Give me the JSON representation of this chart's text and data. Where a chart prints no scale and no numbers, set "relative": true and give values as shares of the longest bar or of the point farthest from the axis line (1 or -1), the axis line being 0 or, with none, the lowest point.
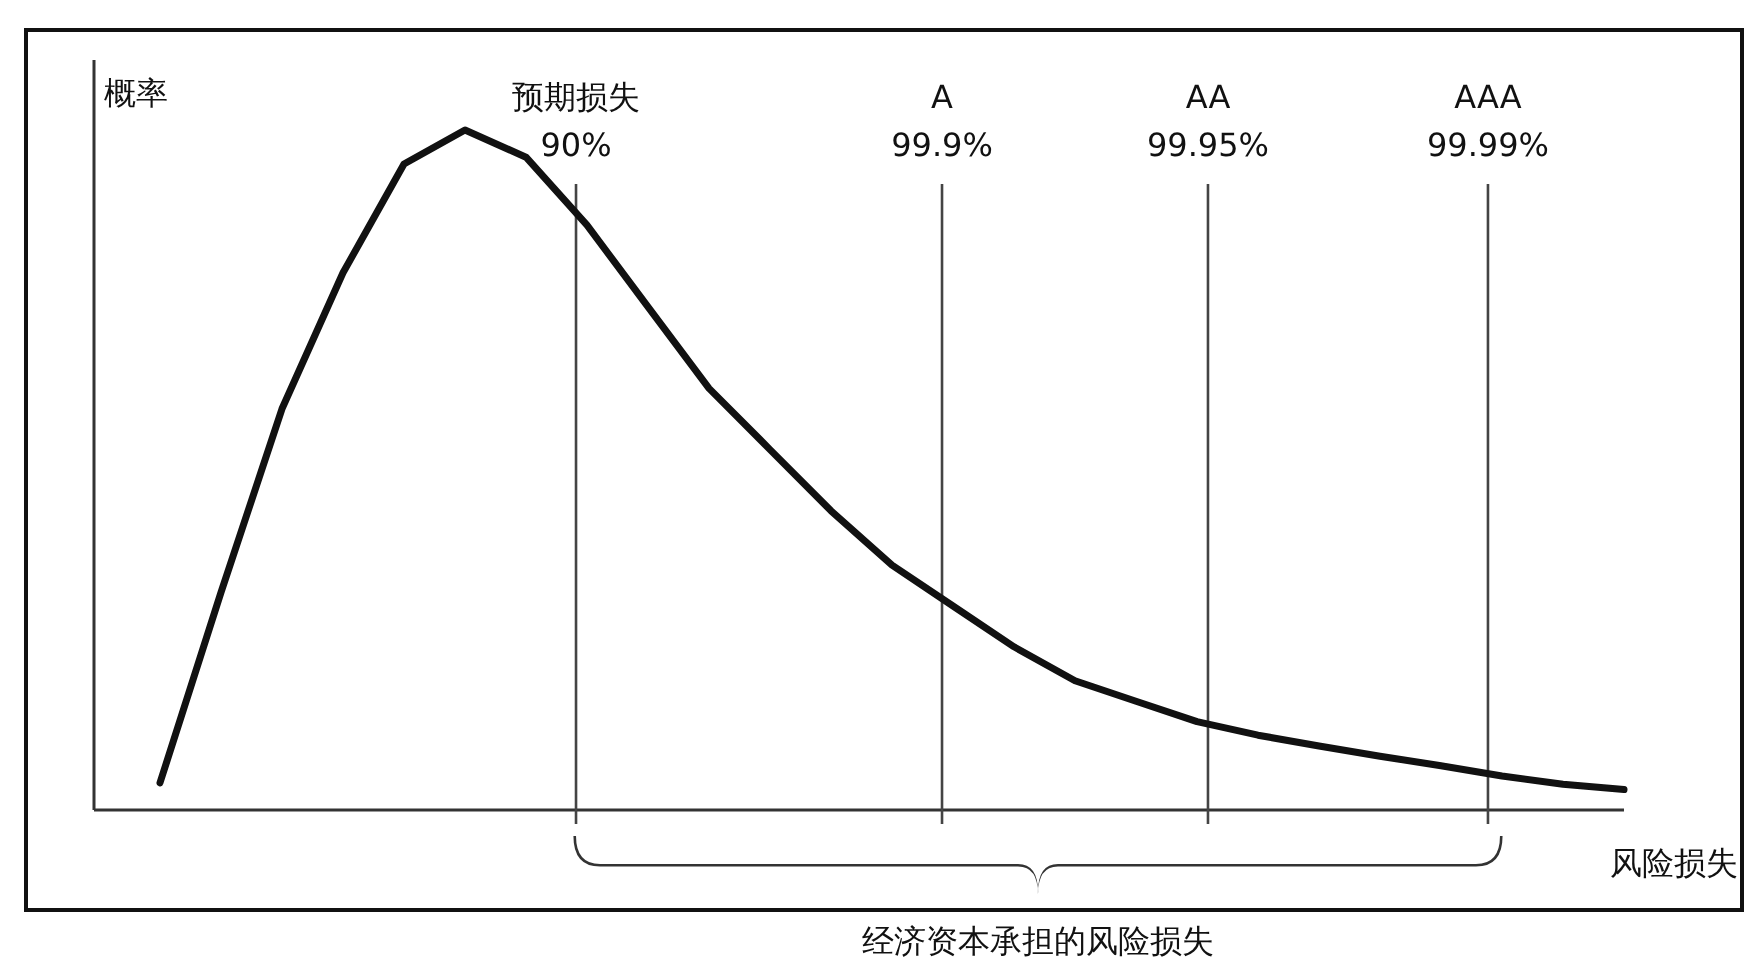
{
  "chart_data": {
    "type": "line",
    "relative": true,
    "xlabel": "风险损失",
    "ylabel": "概率",
    "categories": [
      null,
      null,
      null,
      null,
      null,
      null,
      null,
      null,
      null,
      null,
      null,
      null,
      null,
      null,
      null,
      null,
      null,
      null,
      null,
      null,
      null,
      null,
      null,
      null,
      null
    ],
    "series": [
      {
        "color": "#111111",
        "values": [
          0.04,
          0.32,
          0.59,
          0.79,
          0.95,
          1,
          0.96,
          0.86,
          0.74,
          0.62,
          0.53,
          0.44,
          0.36,
          0.3,
          0.24,
          0.19,
          0.16,
          0.13,
          0.11,
          0.094,
          0.079,
          0.065,
          0.05,
          0.038,
          0.03
        ]
      }
    ],
    "annotations": [
      "预期损失 90%",
      "A 99.9%",
      "AA 99.95%",
      "AAA 99.99%",
      "经济资本承担的风险损失"
    ]
  }
}
